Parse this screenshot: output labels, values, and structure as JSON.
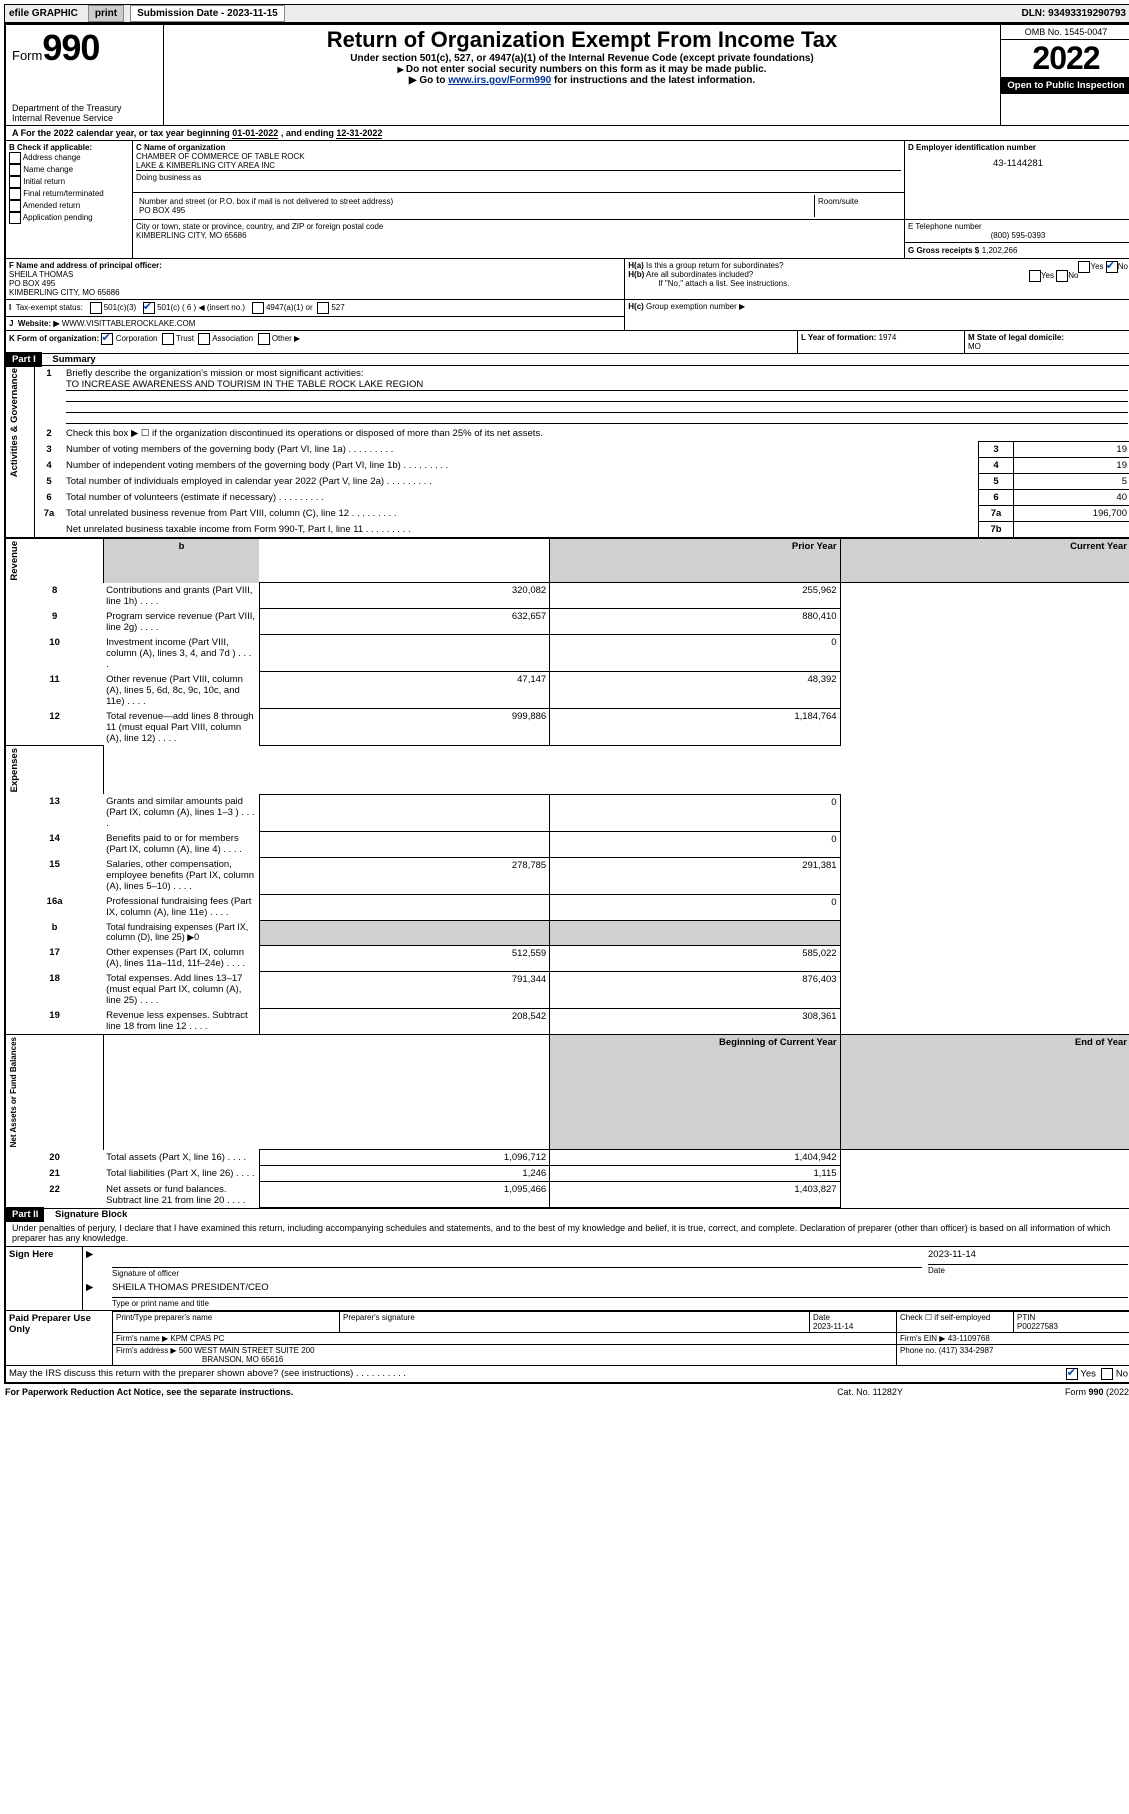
{
  "topbar": {
    "efile": "efile GRAPHIC",
    "print": "print",
    "subdate_label": "Submission Date - 2023-11-15",
    "dln": "DLN: 93493319290793"
  },
  "header": {
    "form_label": "Form",
    "form_num": "990",
    "title": "Return of Organization Exempt From Income Tax",
    "subtitle1": "Under section 501(c), 527, or 4947(a)(1) of the Internal Revenue Code (except private foundations)",
    "subtitle2": "Do not enter social security numbers on this form as it may be made public.",
    "subtitle3_pre": "Go to ",
    "subtitle3_link": "www.irs.gov/Form990",
    "subtitle3_post": " for instructions and the latest information.",
    "dept": "Department of the Treasury",
    "irs": "Internal Revenue Service",
    "omb": "OMB No. 1545-0047",
    "year": "2022",
    "open": "Open to Public Inspection"
  },
  "A": {
    "text_pre": "For the 2022 calendar year, or tax year beginning ",
    "begin": "01-01-2022",
    "mid": " , and ending ",
    "end": "12-31-2022"
  },
  "B": {
    "label": "B Check if applicable:",
    "opts": [
      "Address change",
      "Name change",
      "Initial return",
      "Final return/terminated",
      "Amended return",
      "Application pending"
    ]
  },
  "C": {
    "name_lbl": "C Name of organization",
    "name1": "CHAMBER OF COMMERCE OF TABLE ROCK",
    "name2": "LAKE & KIMBERLING CITY AREA INC",
    "dba_lbl": "Doing business as",
    "addr_lbl": "Number and street (or P.O. box if mail is not delivered to street address)",
    "room_lbl": "Room/suite",
    "addr": "PO BOX 495",
    "city_lbl": "City or town, state or province, country, and ZIP or foreign postal code",
    "city": "KIMBERLING CITY, MO  65686"
  },
  "D": {
    "lbl": "D Employer identification number",
    "val": "43-1144281"
  },
  "E": {
    "lbl": "E Telephone number",
    "val": "(800) 595-0393"
  },
  "G": {
    "lbl": "G Gross receipts $",
    "val": "1,202,266"
  },
  "F": {
    "lbl": "F Name and address of principal officer:",
    "l1": "SHEILA THOMAS",
    "l2": "PO BOX 495",
    "l3": "KIMBERLING CITY, MO  65686"
  },
  "H": {
    "a": "Is this a group return for subordinates?",
    "b": "Are all subordinates included?",
    "b_note": "If \"No,\" attach a list. See instructions.",
    "c": "Group exemption number ▶",
    "yes": "Yes",
    "no": "No"
  },
  "I": {
    "lbl": "Tax-exempt status:",
    "c3": "501(c)(3)",
    "c": "501(c) ( 6 ) ◀ (insert no.)",
    "a1": "4947(a)(1) or",
    "s527": "527"
  },
  "J": {
    "lbl": "Website: ▶",
    "val": "WWW.VISITTABLEROCKLAKE.COM"
  },
  "K": {
    "lbl": "K Form of organization:",
    "corp": "Corporation",
    "trust": "Trust",
    "assoc": "Association",
    "other": "Other ▶"
  },
  "L": {
    "lbl": "L Year of formation:",
    "val": "1974"
  },
  "M": {
    "lbl": "M State of legal domicile:",
    "val": "MO"
  },
  "part1": {
    "title": "Part I",
    "sub": "Summary",
    "q1": "Briefly describe the organization's mission or most significant activities:",
    "q1v": "TO INCREASE AWARENESS AND TOURISM IN THE TABLE ROCK LAKE REGION",
    "q2": "Check this box ▶ ☐ if the organization discontinued its operations or disposed of more than 25% of its net assets.",
    "rows_gov": [
      {
        "n": "3",
        "t": "Number of voting members of the governing body (Part VI, line 1a)",
        "b": "3",
        "v": "19"
      },
      {
        "n": "4",
        "t": "Number of independent voting members of the governing body (Part VI, line 1b)",
        "b": "4",
        "v": "19"
      },
      {
        "n": "5",
        "t": "Total number of individuals employed in calendar year 2022 (Part V, line 2a)",
        "b": "5",
        "v": "5"
      },
      {
        "n": "6",
        "t": "Total number of volunteers (estimate if necessary)",
        "b": "6",
        "v": "40"
      },
      {
        "n": "7a",
        "t": "Total unrelated business revenue from Part VIII, column (C), line 12",
        "b": "7a",
        "v": "196,700"
      },
      {
        "n": "",
        "t": "Net unrelated business taxable income from Form 990-T, Part I, line 11",
        "b": "7b",
        "v": ""
      }
    ],
    "py": "Prior Year",
    "cy": "Current Year",
    "rev": [
      {
        "n": "8",
        "t": "Contributions and grants (Part VIII, line 1h)",
        "p": "320,082",
        "c": "255,962"
      },
      {
        "n": "9",
        "t": "Program service revenue (Part VIII, line 2g)",
        "p": "632,657",
        "c": "880,410"
      },
      {
        "n": "10",
        "t": "Investment income (Part VIII, column (A), lines 3, 4, and 7d )",
        "p": "",
        "c": "0"
      },
      {
        "n": "11",
        "t": "Other revenue (Part VIII, column (A), lines 5, 6d, 8c, 9c, 10c, and 11e)",
        "p": "47,147",
        "c": "48,392"
      },
      {
        "n": "12",
        "t": "Total revenue—add lines 8 through 11 (must equal Part VIII, column (A), line 12)",
        "p": "999,886",
        "c": "1,184,764"
      }
    ],
    "exp": [
      {
        "n": "13",
        "t": "Grants and similar amounts paid (Part IX, column (A), lines 1–3 )",
        "p": "",
        "c": "0"
      },
      {
        "n": "14",
        "t": "Benefits paid to or for members (Part IX, column (A), line 4)",
        "p": "",
        "c": "0"
      },
      {
        "n": "15",
        "t": "Salaries, other compensation, employee benefits (Part IX, column (A), lines 5–10)",
        "p": "278,785",
        "c": "291,381"
      },
      {
        "n": "16a",
        "t": "Professional fundraising fees (Part IX, column (A), line 11e)",
        "p": "",
        "c": "0"
      },
      {
        "n": "b",
        "t": "Total fundraising expenses (Part IX, column (D), line 25) ▶0",
        "p": null,
        "c": null
      },
      {
        "n": "17",
        "t": "Other expenses (Part IX, column (A), lines 11a–11d, 11f–24e)",
        "p": "512,559",
        "c": "585,022"
      },
      {
        "n": "18",
        "t": "Total expenses. Add lines 13–17 (must equal Part IX, column (A), line 25)",
        "p": "791,344",
        "c": "876,403"
      },
      {
        "n": "19",
        "t": "Revenue less expenses. Subtract line 18 from line 12",
        "p": "208,542",
        "c": "308,361"
      }
    ],
    "bcy": "Beginning of Current Year",
    "ecy": "End of Year",
    "na": [
      {
        "n": "20",
        "t": "Total assets (Part X, line 16)",
        "p": "1,096,712",
        "c": "1,404,942"
      },
      {
        "n": "21",
        "t": "Total liabilities (Part X, line 26)",
        "p": "1,246",
        "c": "1,115"
      },
      {
        "n": "22",
        "t": "Net assets or fund balances. Subtract line 21 from line 20",
        "p": "1,095,466",
        "c": "1,403,827"
      }
    ],
    "sidebars": [
      "Activities & Governance",
      "Revenue",
      "Expenses",
      "Net Assets or Fund Balances"
    ]
  },
  "part2": {
    "title": "Part II",
    "sub": "Signature Block",
    "decl": "Under penalties of perjury, I declare that I have examined this return, including accompanying schedules and statements, and to the best of my knowledge and belief, it is true, correct, and complete. Declaration of preparer (other than officer) is based on all information of which preparer has any knowledge."
  },
  "sign": {
    "here": "Sign Here",
    "sig": "Signature of officer",
    "date": "Date",
    "dateval": "2023-11-14",
    "name": "SHEILA THOMAS  PRESIDENT/CEO",
    "name_lbl": "Type or print name and title"
  },
  "paid": {
    "title": "Paid Preparer Use Only",
    "pt_name": "Print/Type preparer's name",
    "ps": "Preparer's signature",
    "date": "Date",
    "dval": "2023-11-14",
    "chk": "Check ☐ if self-employed",
    "ptin_l": "PTIN",
    "ptin": "P00227583",
    "firm_n_l": "Firm's name  ▶",
    "firm_n": "KPM CPAS PC",
    "ein_l": "Firm's EIN ▶",
    "ein": "43-1109768",
    "addr_l": "Firm's address ▶",
    "addr1": "500 WEST MAIN STREET SUITE 200",
    "addr2": "BRANSON, MO  65616",
    "ph_l": "Phone no.",
    "ph": "(417) 334-2987"
  },
  "footer": {
    "may": "May the IRS discuss this return with the preparer shown above? (see instructions)",
    "yes": "Yes",
    "no": "No",
    "pra": "For Paperwork Reduction Act Notice, see the separate instructions.",
    "cat": "Cat. No. 11282Y",
    "form": "Form 990 (2022)"
  }
}
